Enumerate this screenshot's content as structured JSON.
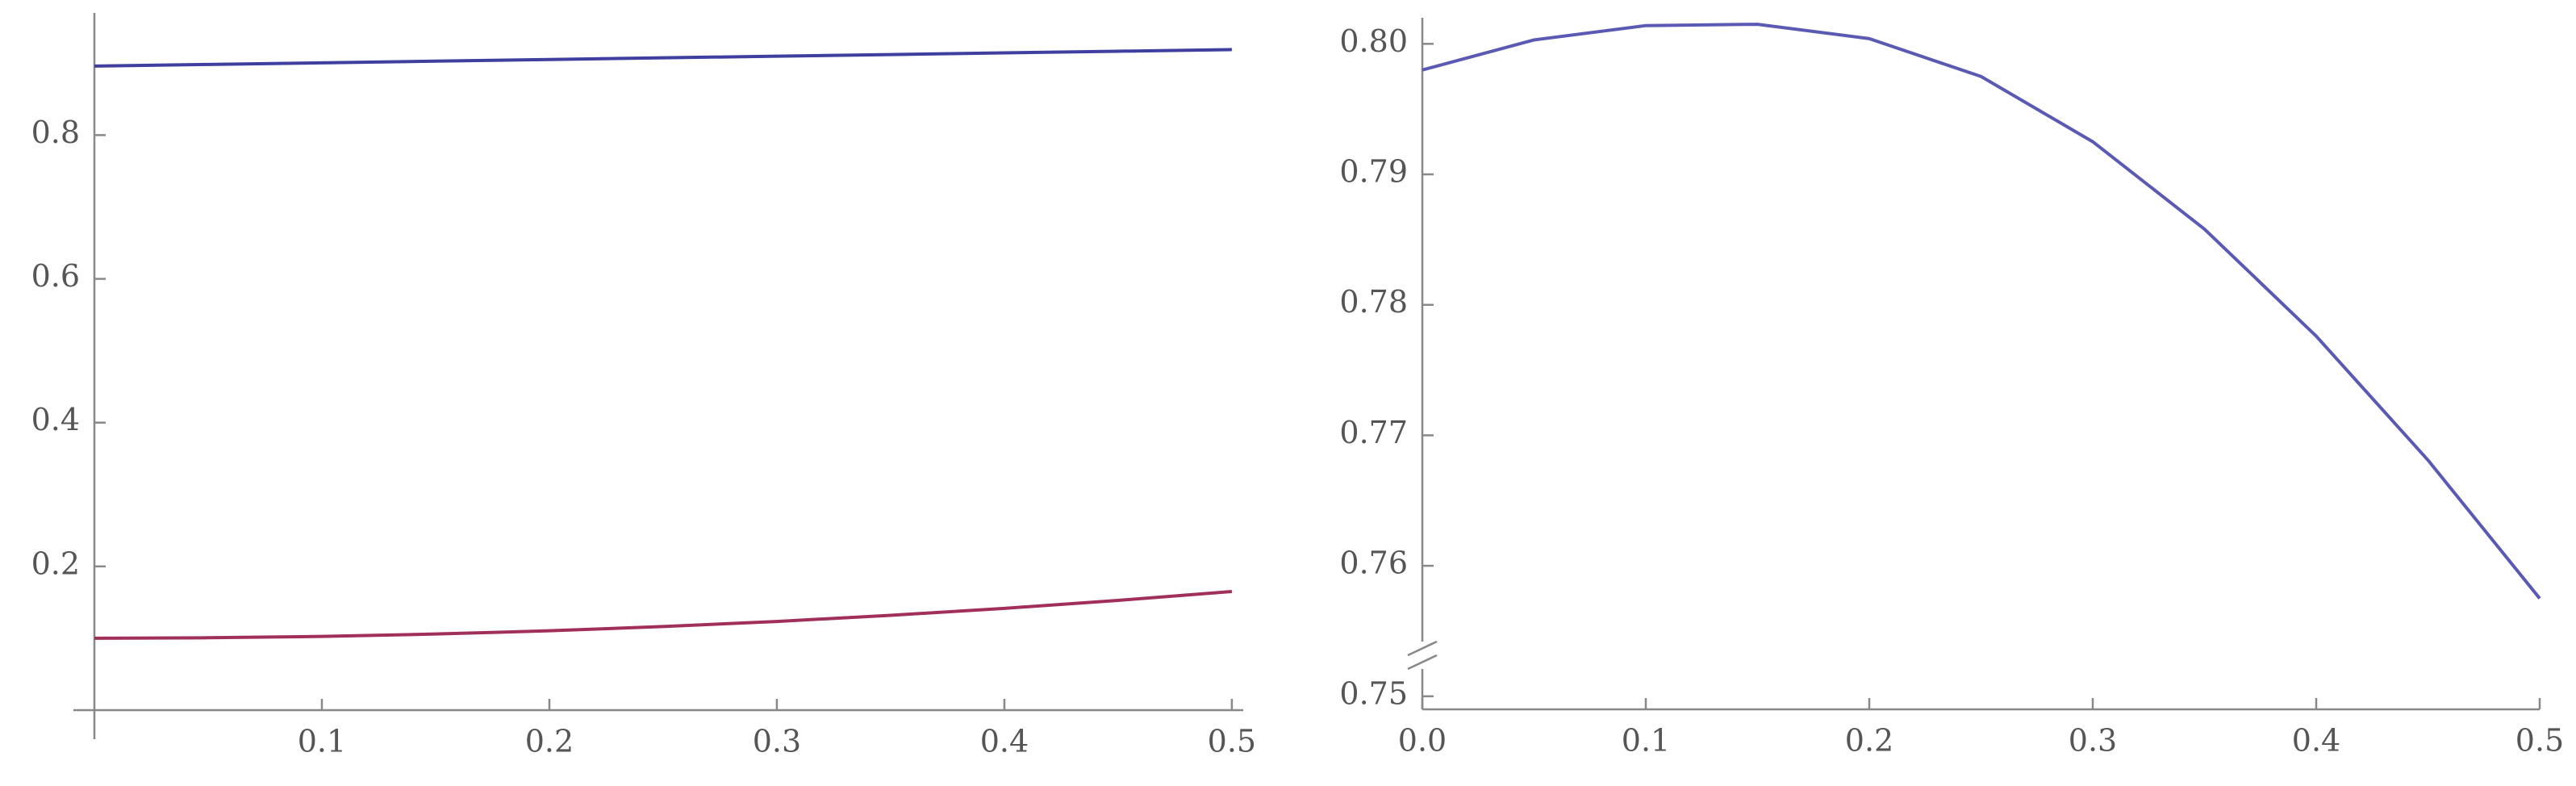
{
  "chart_data": [
    {
      "type": "line",
      "x": [
        0,
        0.05,
        0.1,
        0.15,
        0.2,
        0.25,
        0.3,
        0.35,
        0.4,
        0.45,
        0.5
      ],
      "series": [
        {
          "color": "#3f3fa0",
          "values": [
            0.896,
            0.8983,
            0.9006,
            0.9029,
            0.9052,
            0.9075,
            0.9098,
            0.9121,
            0.9144,
            0.9167,
            0.919
          ]
        },
        {
          "color": "#a0305a",
          "values": [
            0.1,
            0.1007,
            0.1026,
            0.1059,
            0.1104,
            0.1163,
            0.1234,
            0.1319,
            0.1416,
            0.1527,
            0.165
          ]
        }
      ],
      "xlim": [
        0,
        0.505
      ],
      "ylim": [
        0,
        0.97
      ],
      "xticks": [
        0.1,
        0.2,
        0.3,
        0.4,
        0.5
      ],
      "yticks": [
        0.2,
        0.4,
        0.6,
        0.8
      ]
    },
    {
      "type": "line",
      "x": [
        0,
        0.05,
        0.1,
        0.15,
        0.2,
        0.25,
        0.3,
        0.35,
        0.4,
        0.45,
        0.5
      ],
      "series": [
        {
          "color": "#5a5ab4",
          "values": [
            0.798,
            0.8003,
            0.8014,
            0.8015,
            0.8004,
            0.7975,
            0.7925,
            0.7858,
            0.7776,
            0.7681,
            0.7575
          ]
        }
      ],
      "xlim": [
        0,
        0.5
      ],
      "ylim": [
        0.749,
        0.802
      ],
      "xticks": [
        {
          "value": 0,
          "label": "0.0"
        },
        0.1,
        0.2,
        0.3,
        0.4,
        0.5
      ],
      "yticks": [
        0.75,
        0.76,
        0.77,
        0.78,
        0.79,
        {
          "value": 0.8,
          "label": "0.80"
        }
      ]
    }
  ]
}
